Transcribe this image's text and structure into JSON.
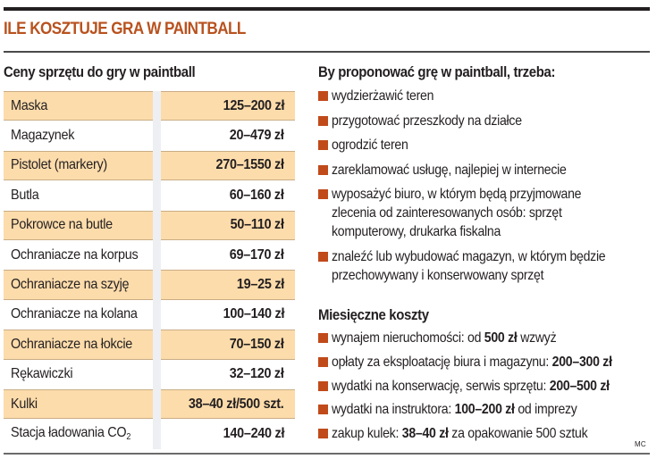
{
  "title": "ILE KOSZTUJE GRA W PAINTBALL",
  "colors": {
    "title": "#b8521f",
    "bullet": "#c04a1a",
    "row_shade": "#fddcab",
    "column_gap": "#eeeff3",
    "rule": "#231f20"
  },
  "prices": {
    "heading": "Ceny sprzętu do gry w paintball",
    "rows": [
      {
        "item": "Maska",
        "price": "125–200 zł",
        "shaded": true
      },
      {
        "item": "Magazynek",
        "price": "20–479 zł",
        "shaded": false
      },
      {
        "item": "Pistolet (markery)",
        "price": "270–1550 zł",
        "shaded": true
      },
      {
        "item": "Butla",
        "price": "60–160 zł",
        "shaded": false
      },
      {
        "item": "Pokrowce na butle",
        "price": "50–110 zł",
        "shaded": true
      },
      {
        "item": "Ochraniacze na korpus",
        "price": "69–170 zł",
        "shaded": false
      },
      {
        "item": "Ochraniacze na szyję",
        "price": "19–25 zł",
        "shaded": true
      },
      {
        "item": "Ochraniacze na kolana",
        "price": "100–140 zł",
        "shaded": false
      },
      {
        "item": "Ochraniacze na łokcie",
        "price": "70–150 zł",
        "shaded": true
      },
      {
        "item": "Rękawiczki",
        "price": "32–120 zł",
        "shaded": false
      },
      {
        "item": "Kulki",
        "price": "38–40 zł/500 szt.",
        "shaded": true
      },
      {
        "item": "Stacja ładowania CO",
        "item_subscript": "2",
        "price": "140–240 zł",
        "shaded": false
      }
    ]
  },
  "requirements": {
    "heading": "By proponować grę w paintball, trzeba:",
    "items": [
      {
        "lines": [
          "wydzierżawić teren"
        ]
      },
      {
        "lines": [
          "przygotować przeszkody na działce"
        ]
      },
      {
        "lines": [
          "ogrodzić teren"
        ]
      },
      {
        "lines": [
          "zareklamować usługę, najlepiej w internecie"
        ]
      },
      {
        "lines": [
          "wyposażyć biuro, w którym będą przyjmowane",
          "zlecenia od zainteresowanych osób: sprzęt",
          "komputerowy, drukarka fiskalna"
        ]
      },
      {
        "lines": [
          "znaleźć lub wybudować magazyn, w którym będzie",
          "przechowywany i konserwowany sprzęt"
        ]
      }
    ]
  },
  "monthly_costs": {
    "heading": "Miesięczne koszty",
    "items": [
      {
        "pre": "wynajem nieruchomości: od ",
        "bold": "500 zł",
        "post": " wzwyż"
      },
      {
        "pre": "opłaty za eksploatację biura i magazynu: ",
        "bold": "200–300 zł",
        "post": ""
      },
      {
        "pre": "wydatki na konserwację, serwis sprzętu: ",
        "bold": "200–500 zł",
        "post": ""
      },
      {
        "pre": "wydatki na instruktora: ",
        "bold": "100–200 zł",
        "post": " od imprezy"
      },
      {
        "pre": "zakup kulek: ",
        "bold": "38–40 zł",
        "post": " za opakowanie 500 sztuk"
      }
    ]
  },
  "credit": "MC"
}
